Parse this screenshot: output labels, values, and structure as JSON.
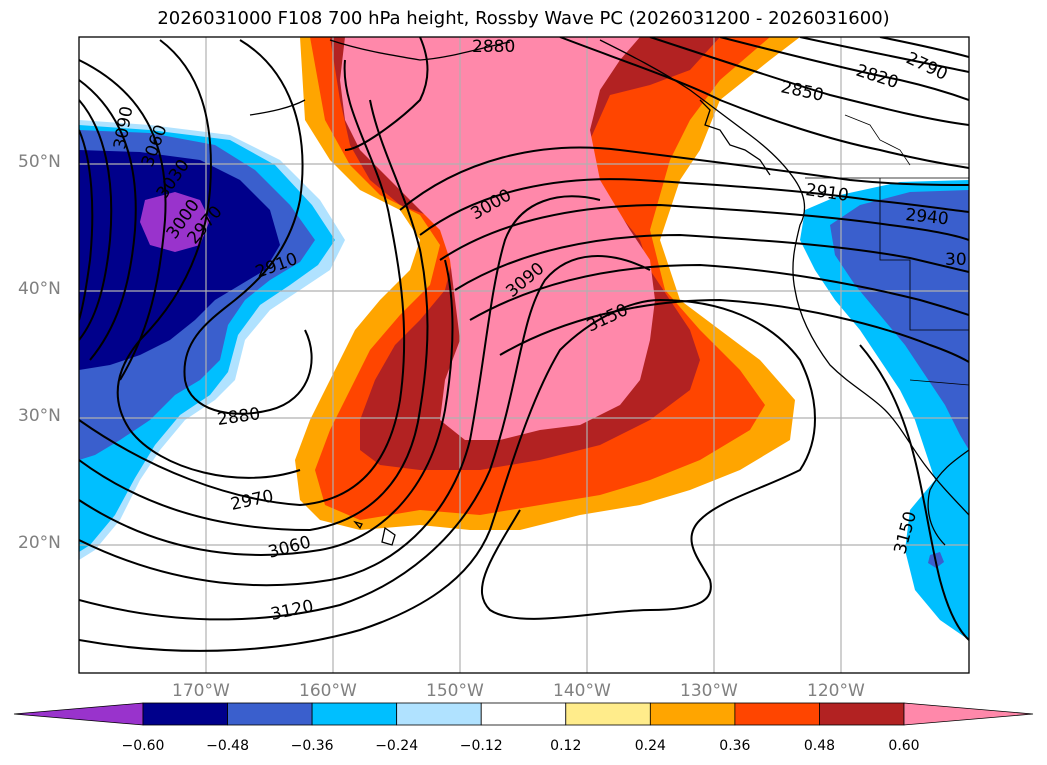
{
  "title": "2026031000 F108 700 hPa height, Rossby Wave PC (2026031200 - 2026031600)",
  "latitude_labels": [
    "50°N",
    "40°N",
    "30°N",
    "20°N"
  ],
  "longitude_labels": [
    "170°W",
    "160°W",
    "150°W",
    "140°W",
    "130°W",
    "120°W"
  ],
  "contour_labels": [
    "2880",
    "2790",
    "2820",
    "2850",
    "2910",
    "2940",
    "30",
    "3090",
    "3060",
    "3030",
    "3000",
    "2970",
    "2910",
    "2880",
    "2970",
    "3060",
    "3120",
    "3000",
    "3090",
    "3150",
    "3150"
  ],
  "colorbar": {
    "ticks": [
      "−0.60",
      "−0.48",
      "−0.36",
      "−0.24",
      "−0.12",
      "0.12",
      "0.24",
      "0.36",
      "0.48",
      "0.60"
    ],
    "colors": [
      "#9933cc",
      "#00008b",
      "#3a5fcd",
      "#00bfff",
      "#b0e2ff",
      "#ffffff",
      "#ffec8b",
      "#ffa500",
      "#ff4500",
      "#b22222",
      "#ff88aa"
    ]
  }
}
